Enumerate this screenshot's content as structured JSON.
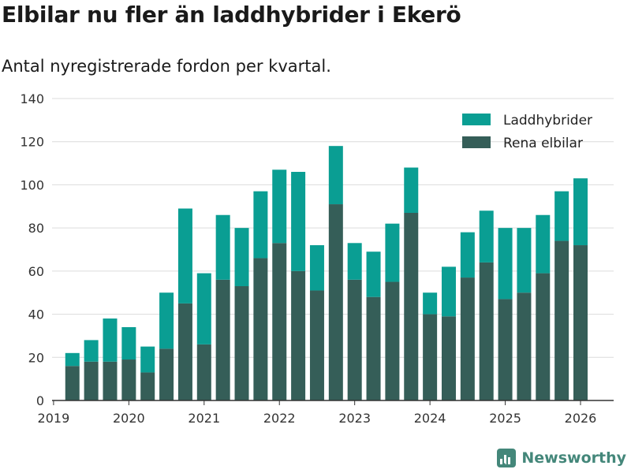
{
  "title": "Elbilar nu fler än laddhybrider i Ekerö",
  "subtitle": "Antal nyregistrerade fordon per kvartal.",
  "brand": {
    "name": "Newsworthy",
    "icon": "newsworthy-logo-icon"
  },
  "colors": {
    "laddhybrider": "#0a9e93",
    "elbilar": "#355e58",
    "grid": "#dcdcdc",
    "axis": "#333333",
    "brand": "#44877a"
  },
  "chart_data": {
    "type": "bar",
    "stacked": true,
    "title": "Elbilar nu fler än laddhybrider i Ekerö",
    "subtitle": "Antal nyregistrerade fordon per kvartal.",
    "xlabel": "",
    "ylabel": "",
    "ylim": [
      0,
      140
    ],
    "yticks": [
      0,
      20,
      40,
      60,
      80,
      100,
      120,
      140
    ],
    "xlim": [
      2018.98,
      2026.44
    ],
    "xticks": [
      2019,
      2020,
      2021,
      2022,
      2023,
      2024,
      2025,
      2026
    ],
    "xtick_labels": [
      "2019",
      "2020",
      "2021",
      "2022",
      "2023",
      "2024",
      "2025",
      "2026"
    ],
    "legend_position": "top-right",
    "grid": true,
    "x": [
      2019.25,
      2019.5,
      2019.75,
      2020.0,
      2020.25,
      2020.5,
      2020.75,
      2021.0,
      2021.25,
      2021.5,
      2021.75,
      2022.0,
      2022.25,
      2022.5,
      2022.75,
      2023.0,
      2023.25,
      2023.5,
      2023.75,
      2024.0,
      2024.25,
      2024.5,
      2024.75,
      2025.0,
      2025.25,
      2025.5,
      2025.75,
      2026.0
    ],
    "series": [
      {
        "name": "Rena elbilar",
        "color": "#355e58",
        "values": [
          16,
          18,
          18,
          19,
          13,
          24,
          45,
          26,
          56,
          53,
          66,
          73,
          60,
          51,
          91,
          56,
          48,
          55,
          87,
          40,
          39,
          57,
          64,
          47,
          50,
          59,
          74,
          72
        ]
      },
      {
        "name": "Laddhybrider",
        "color": "#0a9e93",
        "values": [
          6,
          10,
          20,
          15,
          12,
          26,
          44,
          33,
          30,
          27,
          31,
          34,
          46,
          21,
          27,
          17,
          21,
          27,
          21,
          10,
          23,
          21,
          24,
          33,
          30,
          27,
          23,
          31
        ]
      }
    ],
    "legend": [
      "Laddhybrider",
      "Rena elbilar"
    ]
  }
}
